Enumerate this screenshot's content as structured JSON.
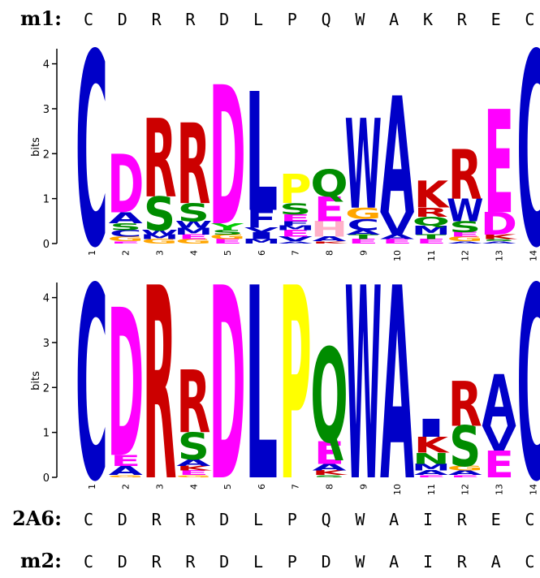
{
  "sequences": {
    "m1": {
      "label": "m1:",
      "residues": [
        "C",
        "D",
        "R",
        "R",
        "D",
        "L",
        "P",
        "Q",
        "W",
        "A",
        "K",
        "R",
        "E",
        "C"
      ]
    },
    "s2A6": {
      "label": "2A6:",
      "residues": [
        "C",
        "D",
        "R",
        "R",
        "D",
        "L",
        "P",
        "Q",
        "W",
        "A",
        "I",
        "R",
        "E",
        "C"
      ]
    },
    "m2": {
      "label": "m2:",
      "residues": [
        "C",
        "D",
        "R",
        "R",
        "D",
        "L",
        "P",
        "D",
        "W",
        "A",
        "I",
        "R",
        "A",
        "C"
      ]
    }
  },
  "colors": {
    "C": "#0000c8",
    "D": "#ff00ff",
    "E": "#ff00ff",
    "R": "#cc0000",
    "K": "#cc0000",
    "H": "#ffb0c8",
    "L": "#0000c8",
    "I": "#0000c8",
    "V": "#0000c8",
    "M": "#0000c8",
    "F": "#0000c8",
    "W": "#0000c8",
    "A": "#0000c8",
    "P": "#ffff00",
    "Y": "#00cc00",
    "S": "#008c00",
    "G": "#ffa500",
    "Q": "#008c00",
    "N": "#008c00",
    "T": "#008c00"
  },
  "logos": [
    {
      "name": "logo-top",
      "axis": {
        "label": "bits",
        "ticks": [
          "0",
          "1",
          "2",
          "3",
          "4"
        ],
        "max": 4.3
      },
      "positions": [
        {
          "n": "1",
          "stack": [
            [
              "C",
              4.3
            ]
          ]
        },
        {
          "n": "2",
          "stack": [
            [
              "E",
              0.05
            ],
            [
              "G",
              0.1
            ],
            [
              "C",
              0.15
            ],
            [
              "S",
              0.15
            ],
            [
              "A",
              0.25
            ],
            [
              "D",
              1.3
            ]
          ]
        },
        {
          "n": "3",
          "stack": [
            [
              "G",
              0.1
            ],
            [
              "M",
              0.1
            ],
            [
              "W",
              0.1
            ],
            [
              "S",
              0.75
            ],
            [
              "R",
              1.75
            ]
          ]
        },
        {
          "n": "4",
          "stack": [
            [
              "G",
              0.1
            ],
            [
              "E",
              0.1
            ],
            [
              "M",
              0.15
            ],
            [
              "W",
              0.15
            ],
            [
              "S",
              0.4
            ],
            [
              "R",
              1.8
            ]
          ]
        },
        {
          "n": "5",
          "stack": [
            [
              "E",
              0.1
            ],
            [
              "G",
              0.1
            ],
            [
              "S",
              0.1
            ],
            [
              "Y",
              0.15
            ],
            [
              "D",
              3.1
            ]
          ]
        },
        {
          "n": "6",
          "stack": [
            [
              "M",
              0.1
            ],
            [
              "I",
              0.15
            ],
            [
              "V",
              0.1
            ],
            [
              "F",
              0.4
            ],
            [
              "L",
              2.65
            ]
          ]
        },
        {
          "n": "7",
          "stack": [
            [
              "A",
              0.05
            ],
            [
              "V",
              0.1
            ],
            [
              "E",
              0.15
            ],
            [
              "M",
              0.1
            ],
            [
              "F",
              0.1
            ],
            [
              "E",
              0.15
            ],
            [
              "S",
              0.25
            ],
            [
              "P",
              0.65
            ]
          ]
        },
        {
          "n": "8",
          "stack": [
            [
              "K",
              0.05
            ],
            [
              "A",
              0.1
            ],
            [
              "H",
              0.35
            ],
            [
              "E",
              0.55
            ],
            [
              "Q",
              0.6
            ]
          ]
        },
        {
          "n": "9",
          "stack": [
            [
              "E",
              0.1
            ],
            [
              "T",
              0.1
            ],
            [
              "A",
              0.1
            ],
            [
              "C",
              0.25
            ],
            [
              "G",
              0.25
            ],
            [
              "W",
              2.0
            ]
          ]
        },
        {
          "n": "10",
          "stack": [
            [
              "E",
              0.1
            ],
            [
              "A",
              0.1
            ],
            [
              "V",
              0.5
            ],
            [
              "A",
              2.6
            ]
          ]
        },
        {
          "n": "11",
          "stack": [
            [
              "E",
              0.1
            ],
            [
              "T",
              0.1
            ],
            [
              "M",
              0.2
            ],
            [
              "Q",
              0.2
            ],
            [
              "R",
              0.2
            ],
            [
              "K",
              0.6
            ]
          ]
        },
        {
          "n": "12",
          "stack": [
            [
              "A",
              0.05
            ],
            [
              "G",
              0.1
            ],
            [
              "E",
              0.1
            ],
            [
              "S",
              0.25
            ],
            [
              "W",
              0.5
            ],
            [
              "R",
              1.1
            ]
          ]
        },
        {
          "n": "13",
          "stack": [
            [
              "A",
              0.05
            ],
            [
              "S",
              0.05
            ],
            [
              "K",
              0.1
            ],
            [
              "D",
              0.5
            ],
            [
              "E",
              2.3
            ]
          ]
        },
        {
          "n": "14",
          "stack": [
            [
              "C",
              4.3
            ]
          ]
        }
      ]
    },
    {
      "name": "logo-bottom",
      "axis": {
        "label": "bits",
        "ticks": [
          "0",
          "1",
          "2",
          "3",
          "4"
        ],
        "max": 4.3
      },
      "positions": [
        {
          "n": "1",
          "stack": [
            [
              "C",
              4.3
            ]
          ]
        },
        {
          "n": "2",
          "stack": [
            [
              "G",
              0.05
            ],
            [
              "A",
              0.2
            ],
            [
              "E",
              0.25
            ],
            [
              "D",
              3.3
            ]
          ]
        },
        {
          "n": "3",
          "stack": [
            [
              "R",
              4.3
            ]
          ]
        },
        {
          "n": "4",
          "stack": [
            [
              "G",
              0.05
            ],
            [
              "E",
              0.1
            ],
            [
              "K",
              0.1
            ],
            [
              "A",
              0.15
            ],
            [
              "S",
              0.6
            ],
            [
              "R",
              1.4
            ]
          ]
        },
        {
          "n": "5",
          "stack": [
            [
              "D",
              4.3
            ]
          ]
        },
        {
          "n": "6",
          "stack": [
            [
              "L",
              4.3
            ]
          ]
        },
        {
          "n": "7",
          "stack": [
            [
              "P",
              4.3
            ]
          ]
        },
        {
          "n": "8",
          "stack": [
            [
              "S",
              0.05
            ],
            [
              "K",
              0.1
            ],
            [
              "A",
              0.15
            ],
            [
              "E",
              0.5
            ],
            [
              "Q",
              2.1
            ]
          ]
        },
        {
          "n": "9",
          "stack": [
            [
              "W",
              4.3
            ]
          ]
        },
        {
          "n": "10",
          "stack": [
            [
              "A",
              4.3
            ]
          ]
        },
        {
          "n": "11",
          "stack": [
            [
              "E",
              0.05
            ],
            [
              "A",
              0.1
            ],
            [
              "M",
              0.15
            ],
            [
              "N",
              0.25
            ],
            [
              "K",
              0.35
            ],
            [
              "I",
              0.4
            ]
          ]
        },
        {
          "n": "12",
          "stack": [
            [
              "E",
              0.05
            ],
            [
              "A",
              0.1
            ],
            [
              "G",
              0.1
            ],
            [
              "S",
              0.9
            ],
            [
              "R",
              1.0
            ]
          ]
        },
        {
          "n": "13",
          "stack": [
            [
              "E",
              0.6
            ],
            [
              "V",
              0.55
            ],
            [
              "A",
              1.15
            ]
          ]
        },
        {
          "n": "14",
          "stack": [
            [
              "C",
              4.3
            ]
          ]
        }
      ]
    }
  ]
}
